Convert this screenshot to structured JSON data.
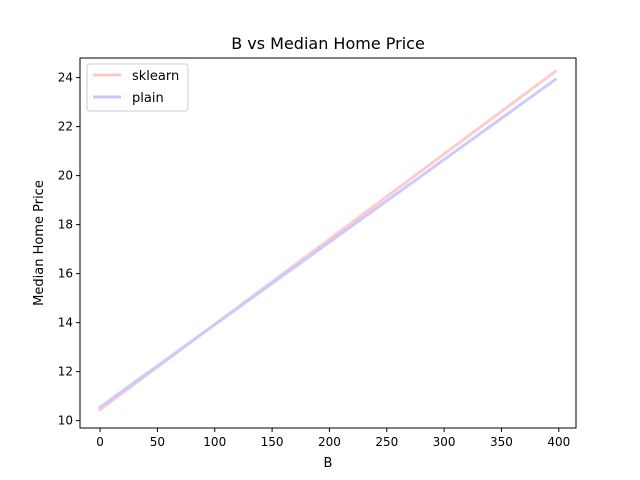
{
  "chart_data": {
    "type": "line",
    "title": "B vs Median Home Price",
    "xlabel": "B",
    "ylabel": "Median Home Price",
    "xlim": [
      -17.5,
      415
    ],
    "ylim": [
      9.7,
      24.8
    ],
    "xticks": [
      0,
      50,
      100,
      150,
      200,
      250,
      300,
      350,
      400
    ],
    "yticks": [
      10,
      12,
      14,
      16,
      18,
      20,
      22,
      24
    ],
    "grid": false,
    "legend_position": "top-left",
    "series": [
      {
        "name": "sklearn",
        "color": "#ffc8c8",
        "x": [
          0,
          396.9
        ],
        "y": [
          10.45,
          24.25
        ]
      },
      {
        "name": "plain",
        "color": "#c8c8ff",
        "x": [
          0,
          396.9
        ],
        "y": [
          10.55,
          23.92
        ]
      }
    ]
  }
}
